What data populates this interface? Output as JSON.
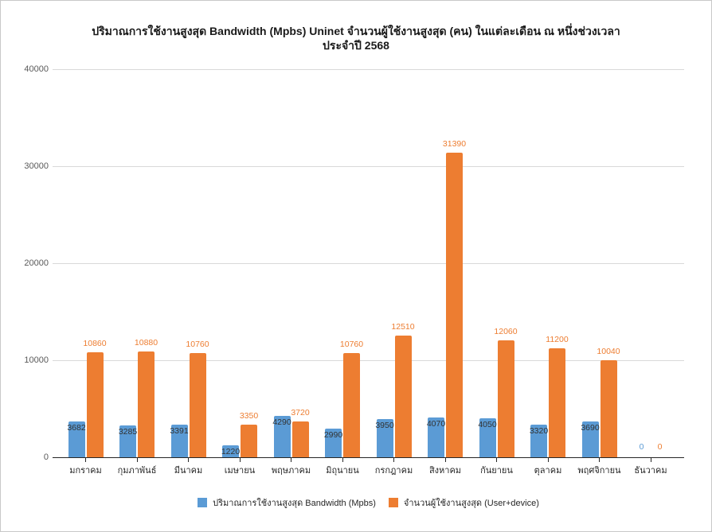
{
  "title": {
    "line1": "ปริมาณการใช้งานสูงสุด Bandwidth (Mpbs) Uninet จำนวนผู้ใช้งานสูงสุด (คน) ในแต่ละเดือน ณ หนึ่งช่วงเวลา",
    "line2": "ประจำปี 2568"
  },
  "chart_data": {
    "type": "bar",
    "title": "ปริมาณการใช้งานสูงสุด Bandwidth (Mpbs) Uninet จำนวนผู้ใช้งานสูงสุด (คน) ในแต่ละเดือน ณ หนึ่งช่วงเวลา ประจำปี 2568",
    "categories": [
      "มกราคม",
      "กุมภาพันธ์",
      "มีนาคม",
      "เมษายน",
      "พฤษภาคม",
      "มิถุนายน",
      "กรกฎาคม",
      "สิงหาคม",
      "กันยายน",
      "ตุลาคม",
      "พฤศจิกายน",
      "ธันวาคม"
    ],
    "series": [
      {
        "name": "ปริมาณการใช้งานสูงสุด Bandwidth (Mpbs)",
        "color": "#5B9BD5",
        "values": [
          3682,
          3285,
          3391,
          1220,
          4290,
          2990,
          3950,
          4070,
          4050,
          3320,
          3690,
          0
        ]
      },
      {
        "name": "จำนวนผู้ใช้งานสูงสุด (User+device)",
        "color": "#ED7D31",
        "values": [
          10860,
          10880,
          10760,
          3350,
          3720,
          10760,
          12510,
          31390,
          12060,
          11200,
          10040,
          0
        ]
      }
    ],
    "xlabel": "",
    "ylabel": "",
    "ylim": [
      0,
      40000
    ],
    "yticks": [
      0,
      10000,
      20000,
      30000,
      40000
    ],
    "grid": true,
    "legend_position": "bottom",
    "value_labels": "shown",
    "colors": {
      "gridline": "#D9D9D9",
      "axis": "#262626",
      "ytick_label": "#595959",
      "xtick_label": "#262626",
      "bandwidth_value_label": "#333333",
      "users_value_label": "#ED7D31"
    }
  }
}
